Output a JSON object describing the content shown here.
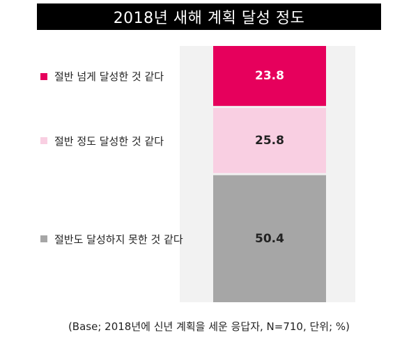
{
  "title": "2018년 새해 계획 달성 정도",
  "footnote": "(Base; 2018년에 신년 계획을 세운 응답자, N=710, 단위; %)",
  "chart_data": {
    "type": "bar",
    "stacked": true,
    "orientation": "vertical",
    "title": "2018년 새해 계획 달성 정도",
    "unit": "%",
    "series": [
      {
        "name": "절반 넘게 달성한 것 같다",
        "value": 23.8,
        "color": "#e6005c",
        "label_color": "#ffffff"
      },
      {
        "name": "절반 정도 달성한 것 같다",
        "value": 25.8,
        "color": "#f9cfe2",
        "label_color": "#222222"
      },
      {
        "name": "절반도 달성하지 못한 것 같다",
        "value": 50.4,
        "color": "#a6a6a6",
        "label_color": "#222222"
      }
    ],
    "total": 100,
    "legend_position": "left",
    "grid": false
  }
}
